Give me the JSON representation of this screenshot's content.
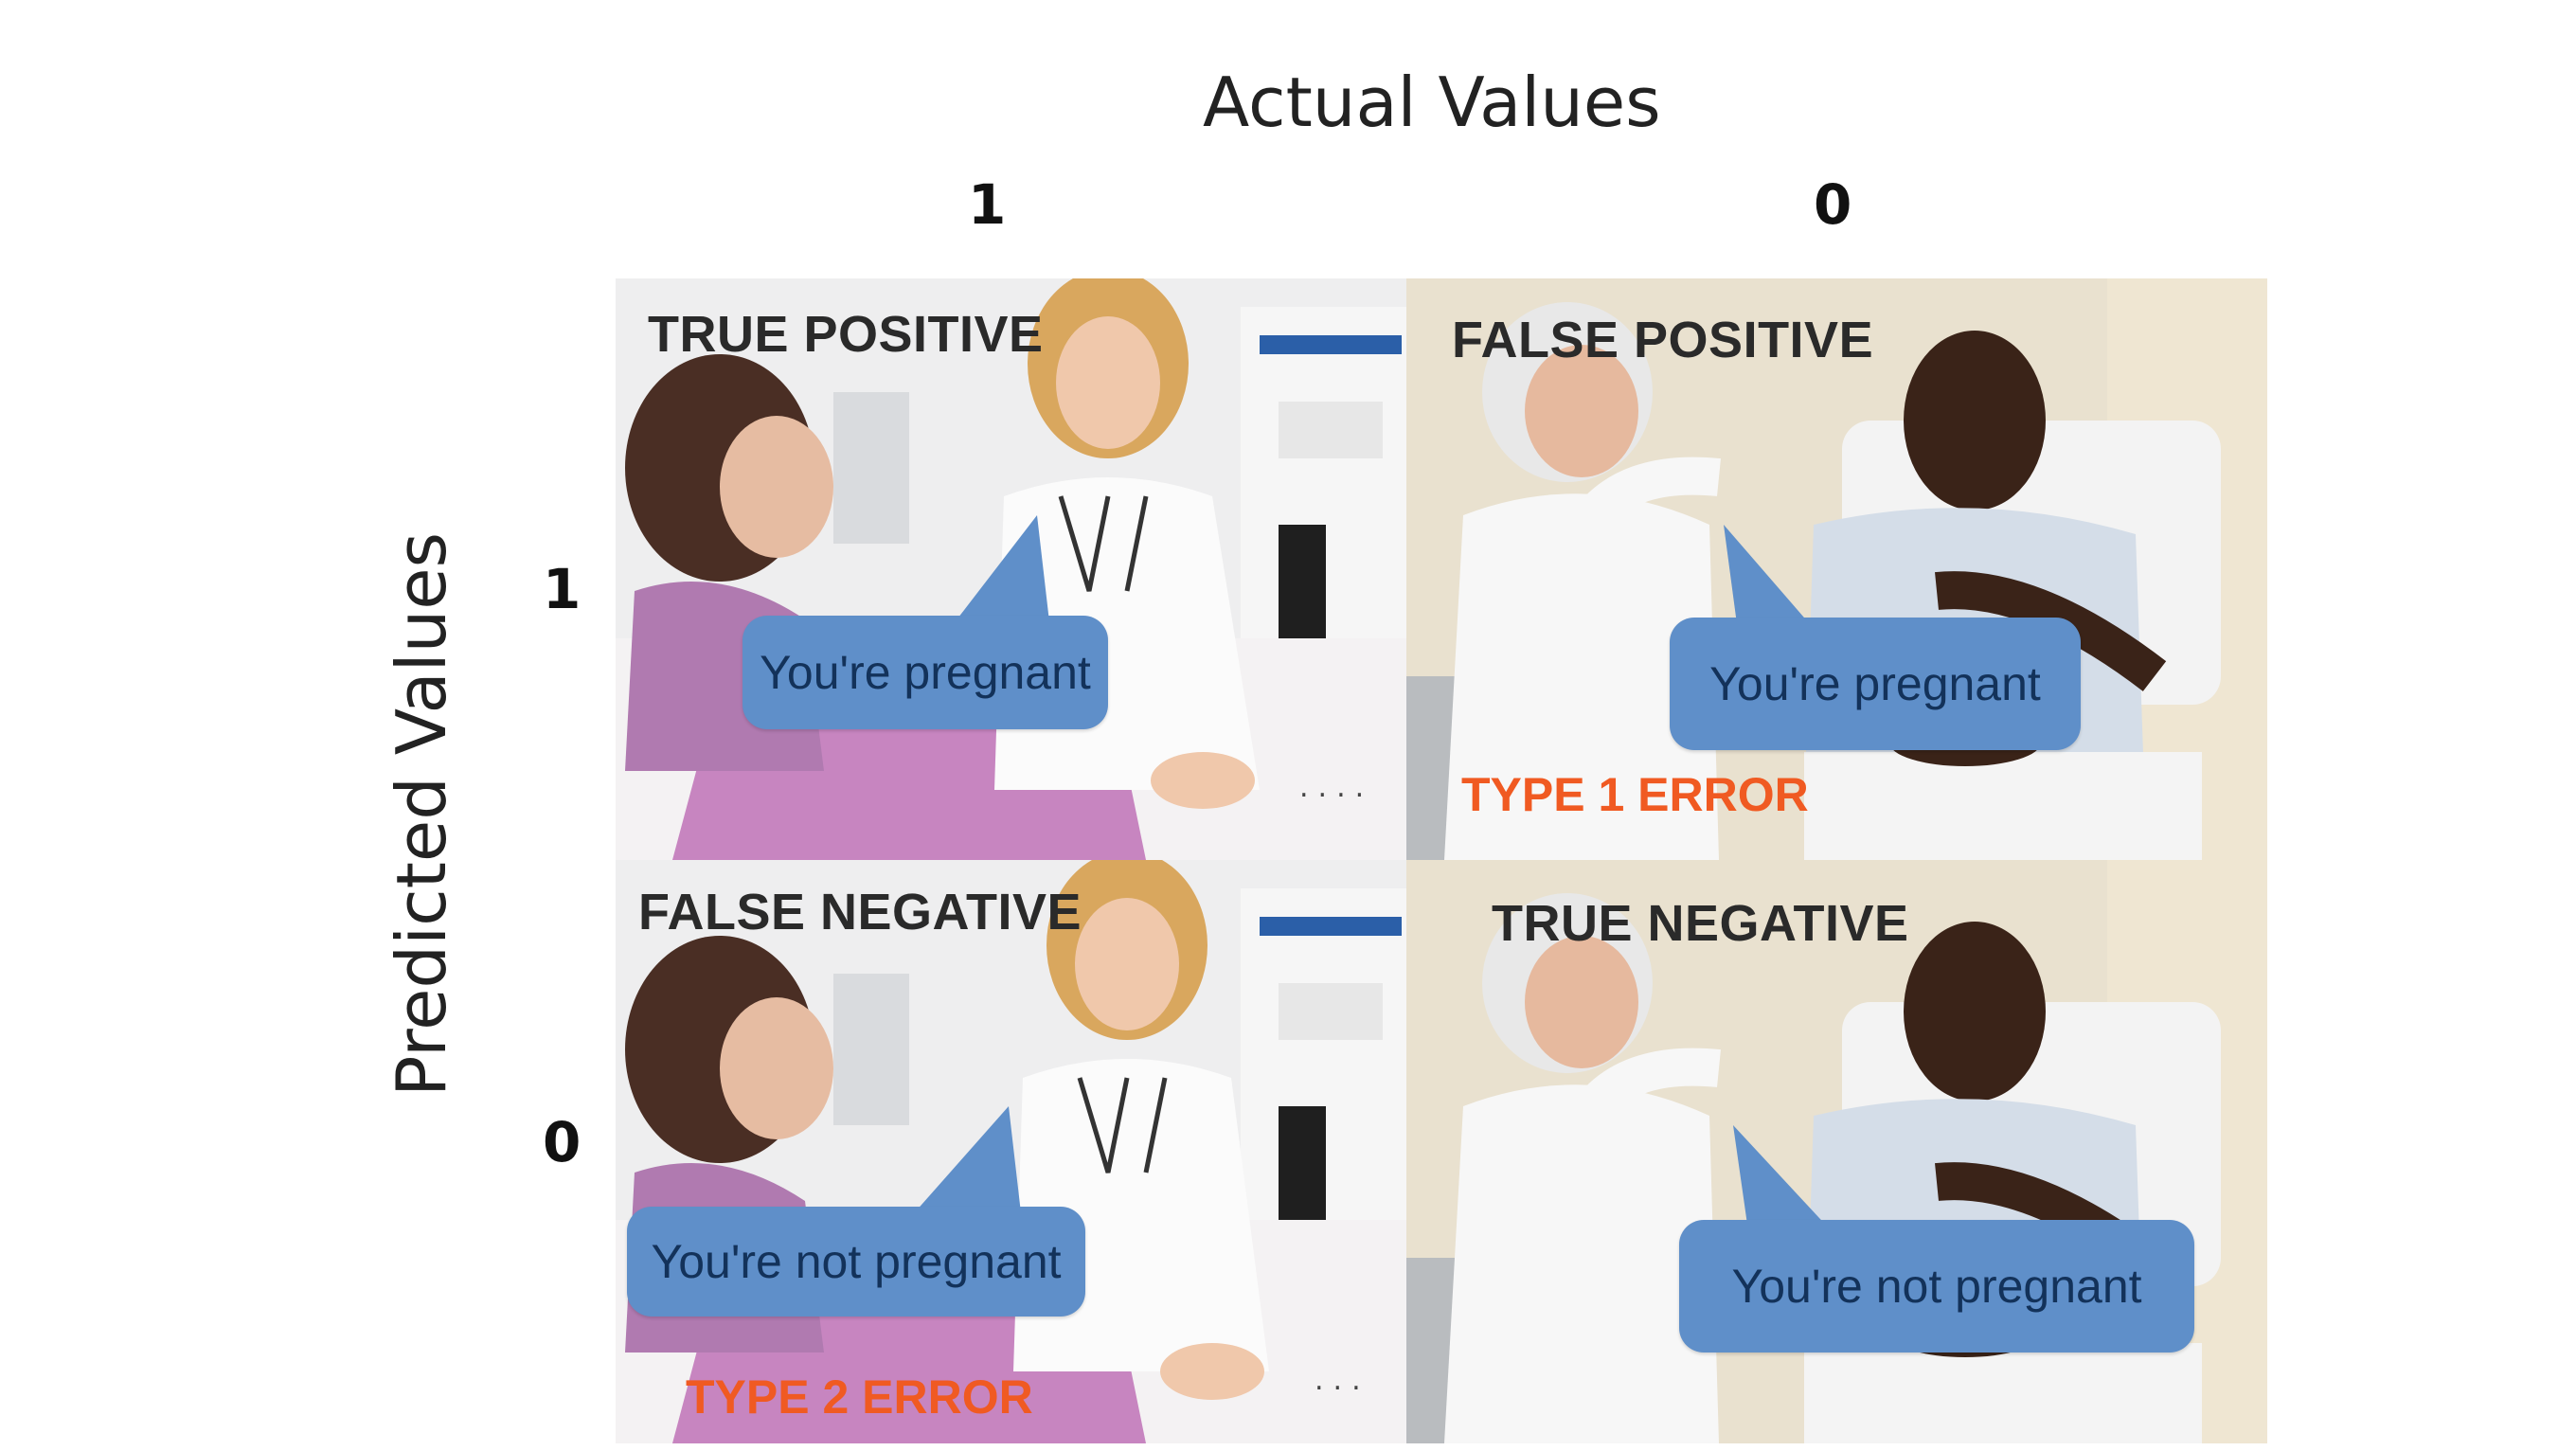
{
  "axes": {
    "column_title": "Actual Values",
    "row_title": "Predicted Values",
    "column_ticks": [
      "1",
      "0"
    ],
    "row_ticks": [
      "1",
      "0"
    ]
  },
  "cells": {
    "true_positive": {
      "label": "TRUE POSITIVE",
      "speech": "You're pregnant"
    },
    "false_positive": {
      "label": "FALSE POSITIVE",
      "speech": "You're pregnant",
      "error": "TYPE 1 ERROR"
    },
    "false_negative": {
      "label": "FALSE NEGATIVE",
      "speech": "You're not pregnant",
      "error": "TYPE 2 ERROR"
    },
    "true_negative": {
      "label": "TRUE NEGATIVE",
      "speech": "You're not pregnant"
    }
  },
  "colors": {
    "bubble": "#5f8fc9",
    "bubble_text": "#13325a",
    "error_text": "#f05a22"
  },
  "icons": {
    "clinic_scene": "female-doctor-with-pregnant-patient",
    "hospital_scene": "male-doctor-with-male-patient"
  }
}
